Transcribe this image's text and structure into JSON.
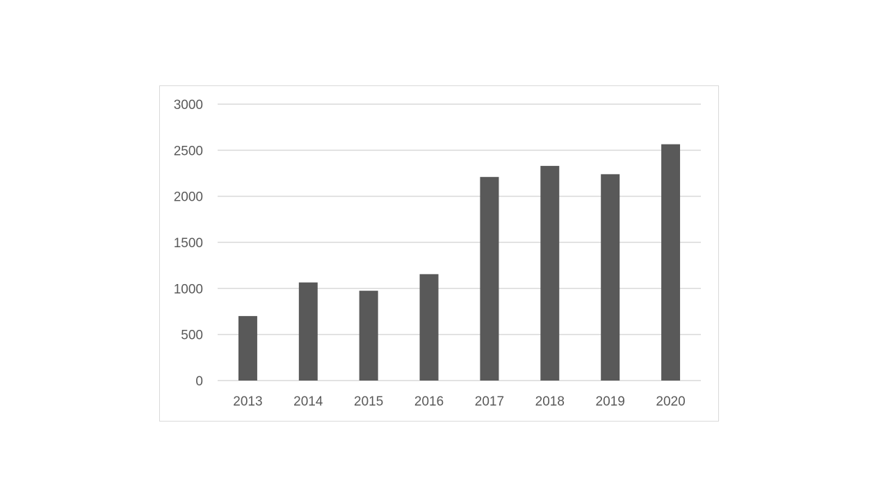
{
  "chart_data": {
    "type": "bar",
    "categories": [
      "2013",
      "2014",
      "2015",
      "2016",
      "2017",
      "2018",
      "2019",
      "2020"
    ],
    "values": [
      700,
      1065,
      975,
      1155,
      2210,
      2330,
      2240,
      2565
    ],
    "title": "",
    "xlabel": "",
    "ylabel": "",
    "ylim": [
      0,
      3000
    ],
    "yticks": [
      "0",
      "500",
      "1000",
      "1500",
      "2000",
      "2500",
      "3000"
    ],
    "grid": true,
    "legend": "none",
    "bar_color": "#595959",
    "grid_color": "#d9d9d9"
  }
}
